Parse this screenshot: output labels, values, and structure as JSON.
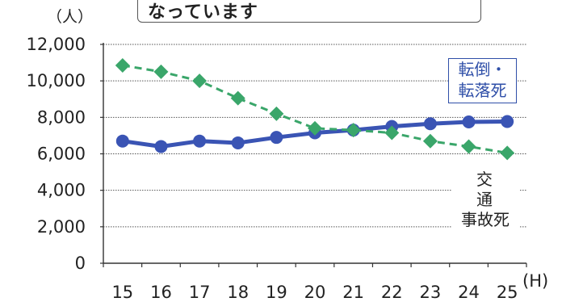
{
  "header": {
    "title_fragment": "なっています"
  },
  "chart_data": {
    "type": "line",
    "categories": [
      "15",
      "16",
      "17",
      "18",
      "19",
      "20",
      "21",
      "22",
      "23",
      "24",
      "25"
    ],
    "x_unit": "(H)",
    "y_unit": "（人）",
    "ylim": [
      0,
      12000
    ],
    "yticks": [
      "0",
      "2,000",
      "4,000",
      "6,000",
      "8,000",
      "10,000",
      "12,000"
    ],
    "ytick_values": [
      0,
      2000,
      4000,
      6000,
      8000,
      10000,
      12000
    ],
    "grid": "horizontal",
    "series": [
      {
        "name": "交通事故死",
        "color": "#3a54b4",
        "marker": "circle",
        "line_style": "solid",
        "values": [
          6700,
          6400,
          6700,
          6600,
          6900,
          7150,
          7300,
          7500,
          7650,
          7750,
          7770
        ]
      },
      {
        "name": "転倒・転落死",
        "color": "#3aa66a",
        "marker": "diamond",
        "line_style": "dashed",
        "values": [
          10850,
          10500,
          10000,
          9050,
          8200,
          7400,
          7300,
          7150,
          6700,
          6400,
          6050
        ]
      }
    ],
    "annotations": {
      "falls": [
        "転倒・",
        "転落死"
      ],
      "traffic": [
        "交 通",
        "事故死"
      ]
    }
  }
}
